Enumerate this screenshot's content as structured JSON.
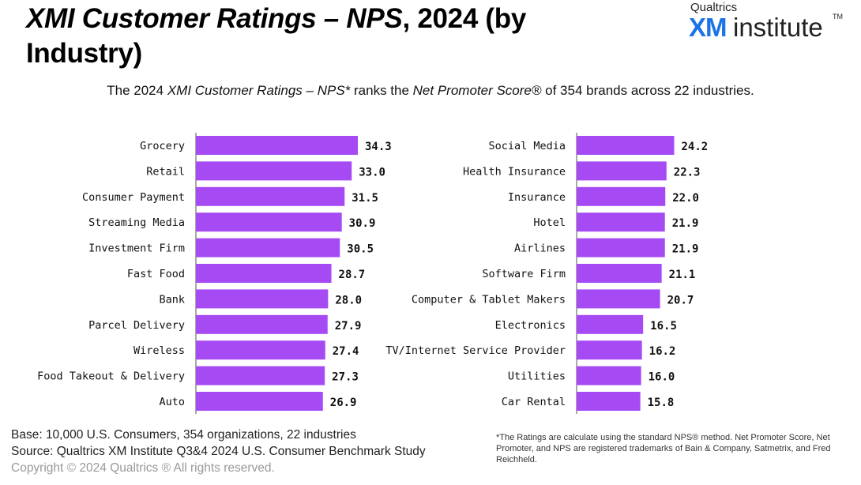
{
  "header": {
    "title_italic": "XMI Customer Ratings – NPS",
    "title_rest": ", 2024 (by Industry)",
    "logo_small": "Qualtrics",
    "logo_xm": "XM",
    "logo_institute": "institute",
    "logo_tm": "TM"
  },
  "subtitle": {
    "part1": "The 2024 ",
    "italic1": "XMI Customer Ratings – NPS*",
    "part2": " ranks the ",
    "italic2": "Net Promoter Score®",
    "part3": " of 354 brands across 22 industries."
  },
  "footer": {
    "base": "Base: 10,000 U.S. Consumers, 354 organizations, 22 industries",
    "source": "Source: Qualtrics XM Institute Q3&4 2024 U.S. Consumer Benchmark Study",
    "copyright": "Copyright © 2024 Qualtrics ® All rights reserved.",
    "note": "*The Ratings are calculate using the standard NPS® method. Net Promoter Score, Net Promoter, and NPS are registered trademarks of Bain & Company, Satmetrix, and Fred Reichheld."
  },
  "colors": {
    "bar": "#A64BF4",
    "axis": "#555555"
  },
  "chart_data": [
    {
      "type": "bar",
      "orientation": "horizontal",
      "title": "",
      "xlim": [
        0,
        34.3
      ],
      "categories": [
        "Grocery",
        "Retail",
        "Consumer Payment",
        "Streaming Media",
        "Investment Firm",
        "Fast Food",
        "Bank",
        "Parcel Delivery",
        "Wireless",
        "Food Takeout & Delivery",
        "Auto"
      ],
      "values": [
        34.3,
        33.0,
        31.5,
        30.9,
        30.5,
        28.7,
        28.0,
        27.9,
        27.4,
        27.3,
        26.9
      ],
      "labels": [
        "34.3",
        "33.0",
        "31.5",
        "30.9",
        "30.5",
        "28.7",
        "28.0",
        "27.9",
        "27.4",
        "27.3",
        "26.9"
      ]
    },
    {
      "type": "bar",
      "orientation": "horizontal",
      "title": "",
      "xlim": [
        0,
        34.3
      ],
      "categories": [
        "Social Media",
        "Health Insurance",
        "Insurance",
        "Hotel",
        "Airlines",
        "Software Firm",
        "Computer & Tablet Makers",
        "Electronics",
        "TV/Internet Service Provider",
        "Utilities",
        "Car Rental"
      ],
      "values": [
        24.2,
        22.3,
        22.0,
        21.9,
        21.9,
        21.1,
        20.7,
        16.5,
        16.2,
        16.0,
        15.8
      ],
      "labels": [
        "24.2",
        "22.3",
        "22.0",
        "21.9",
        "21.9",
        "21.1",
        "20.7",
        "16.5",
        "16.2",
        "16.0",
        "15.8"
      ]
    }
  ]
}
